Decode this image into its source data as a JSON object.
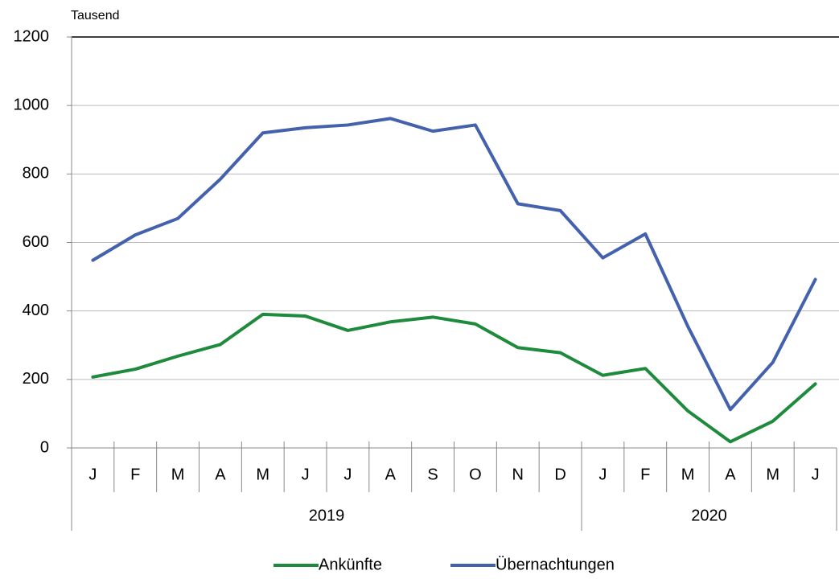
{
  "chart_data": {
    "type": "line",
    "y_unit_label": "Tausend",
    "categories": [
      "J",
      "F",
      "M",
      "A",
      "M",
      "J",
      "J",
      "A",
      "S",
      "O",
      "N",
      "D",
      "J",
      "F",
      "M",
      "A",
      "M",
      "J"
    ],
    "groups": [
      {
        "name": "2019",
        "size": 12
      },
      {
        "name": "2020",
        "size": 6
      }
    ],
    "series": [
      {
        "name": "Ankünfte",
        "color": "#1e8a3c",
        "values": [
          207,
          230,
          268,
          302,
          390,
          385,
          343,
          368,
          382,
          362,
          293,
          278,
          212,
          232,
          108,
          18,
          78,
          187
        ]
      },
      {
        "name": "Übernachtungen",
        "color": "#4361ad",
        "values": [
          548,
          622,
          670,
          785,
          920,
          935,
          943,
          962,
          925,
          943,
          713,
          693,
          555,
          625,
          355,
          112,
          250,
          492
        ]
      }
    ],
    "ylim": [
      0,
      1200
    ],
    "yticks": [
      0,
      200,
      400,
      600,
      800,
      1000,
      1200
    ],
    "grid": true,
    "legend": "bottom"
  }
}
